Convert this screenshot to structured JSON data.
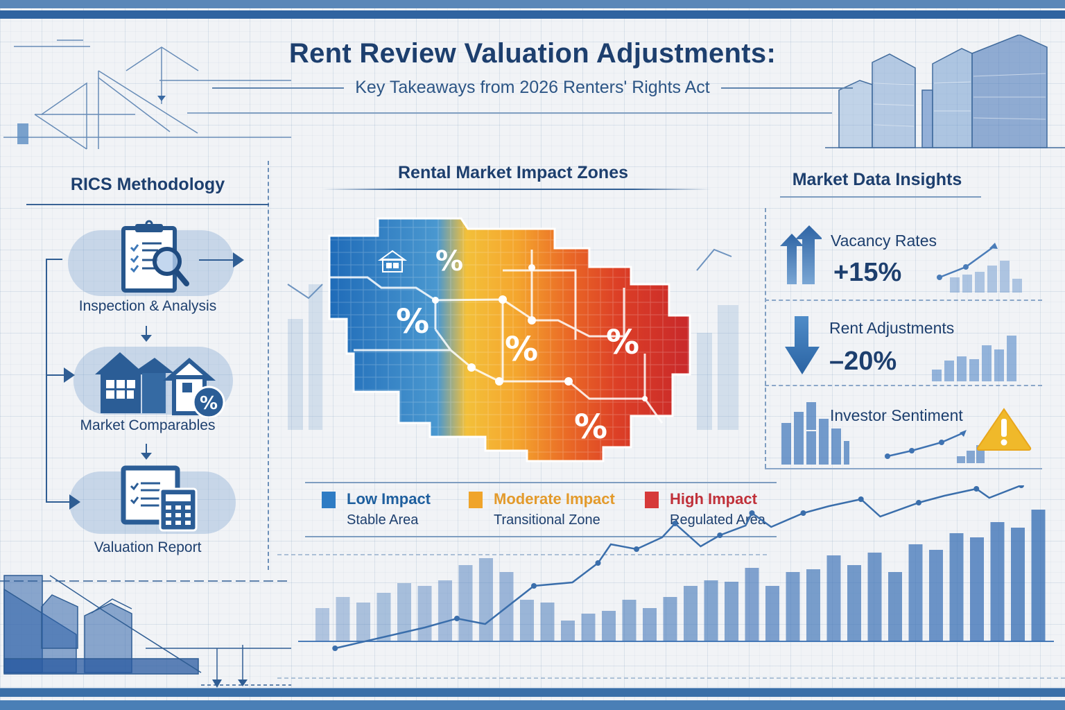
{
  "header": {
    "title": "Rent Review Valuation Adjustments:",
    "subtitle": "Key Takeaways from 2026 Renters' Rights Act"
  },
  "left_panel": {
    "title": "RICS Methodology",
    "steps": [
      {
        "label": "Inspection & Analysis",
        "icon": "clipboard-magnifier-icon"
      },
      {
        "label": "Market Comparables",
        "icon": "houses-percent-icon"
      },
      {
        "label": "Valuation Report",
        "icon": "report-calculator-icon"
      }
    ]
  },
  "center_panel": {
    "title": "Rental Market Impact Zones",
    "map_labels": [
      "%",
      "%",
      "%",
      "%",
      "%"
    ],
    "legend": [
      {
        "name": "Low Impact",
        "desc": "Stable Area",
        "color": "#2f7cc4"
      },
      {
        "name": "Moderate Impact",
        "desc": "Transitional Zone",
        "color": "#f0a42a"
      },
      {
        "name": "High Impact",
        "desc": "Regulated Area",
        "color": "#d63a3a"
      }
    ],
    "legend_text_colors": [
      "#1e5f9e",
      "#e39a2b",
      "#c0313a"
    ]
  },
  "right_panel": {
    "title": "Market Data Insights",
    "metrics": [
      {
        "label": "Vacancy Rates",
        "value": "+15%",
        "icon": "double-arrow-up-icon"
      },
      {
        "label": "Rent Adjustments",
        "value": "–20%",
        "icon": "arrow-down-icon"
      },
      {
        "label": "Investor Sentiment",
        "value": "",
        "icon": "warning-triangle-icon"
      }
    ]
  },
  "colors": {
    "navy": "#1d3f6e",
    "blue_mid": "#2f5d93",
    "low": "#2f7cc4",
    "moderate": "#f0a42a",
    "high": "#d63a3a",
    "warning": "#f0b92a"
  },
  "chart_data": {
    "type": "bar",
    "title": "",
    "xlabel": "",
    "ylabel": "",
    "categories": [],
    "values": [
      24,
      32,
      28,
      35,
      42,
      40,
      44,
      55,
      60,
      50,
      30,
      28,
      15,
      20,
      22,
      30,
      24,
      32,
      40,
      44,
      43,
      53,
      40,
      50,
      52,
      62,
      55,
      64,
      50,
      70,
      66,
      78,
      75,
      86,
      82,
      95
    ]
  }
}
